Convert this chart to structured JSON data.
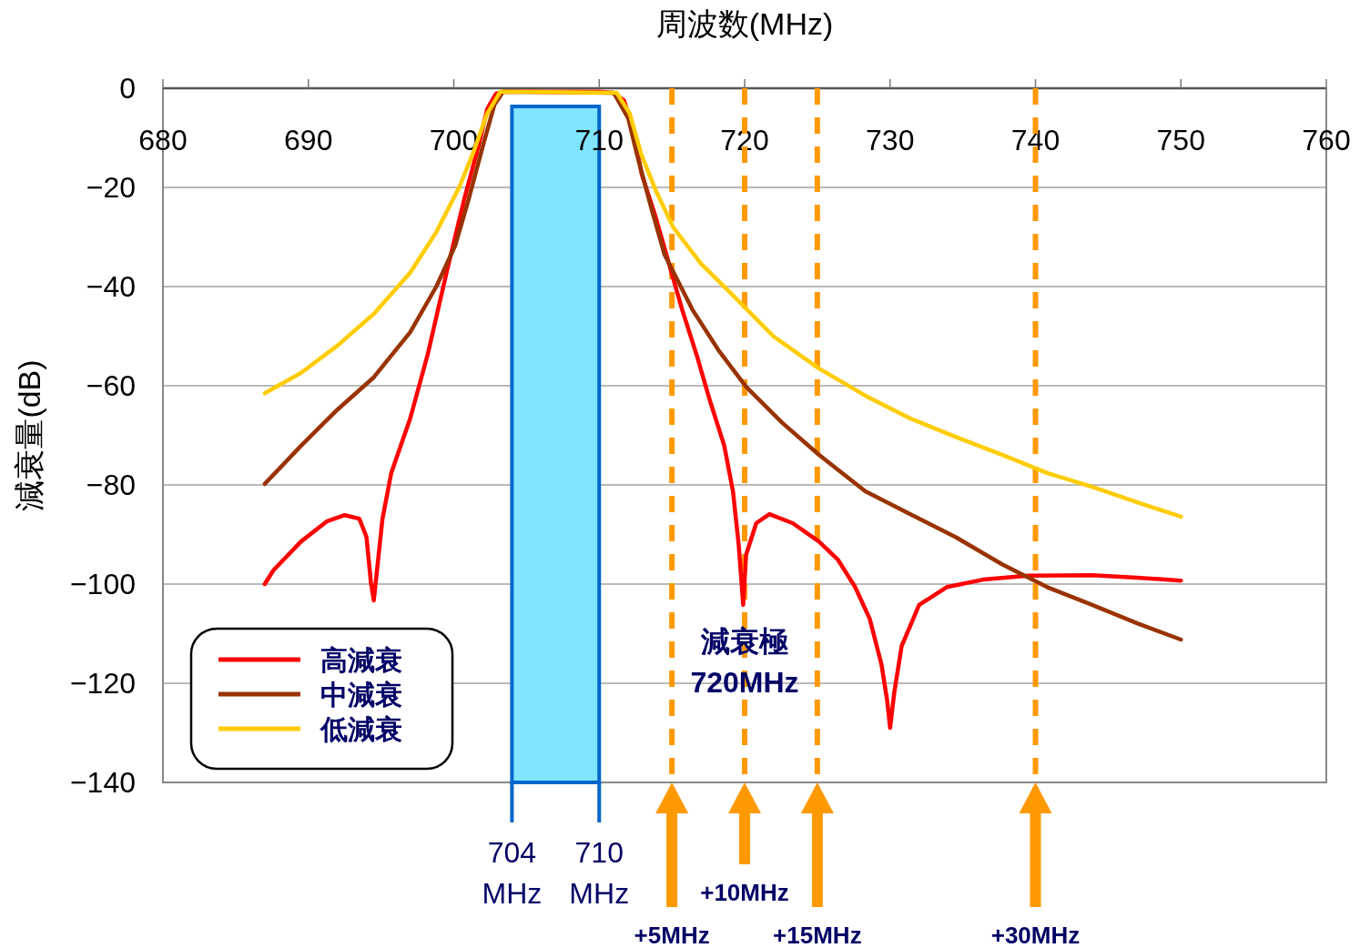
{
  "chart_data": {
    "type": "line",
    "xlabel": "周波数(MHz)",
    "ylabel": "減衰量(dB)",
    "xlim": [
      680,
      760
    ],
    "xticks": [
      680,
      690,
      700,
      710,
      720,
      730,
      740,
      750,
      760
    ],
    "ylim": [
      -140,
      0
    ],
    "yticks": [
      0,
      -20,
      -40,
      -60,
      -80,
      -100,
      -120,
      -140
    ],
    "grid": "y",
    "legend": "bottom left",
    "line_style": "solid",
    "series": [
      {
        "name": "高減衰",
        "color": "#ff0000",
        "x": [
          687,
          687.6,
          689.5,
          691.3,
          692.5,
          693.5,
          694.0,
          694.3,
          694.5,
          694.7,
          695.1,
          695.7,
          697.0,
          698.2,
          699.5,
          700.7,
          701.7,
          702.3,
          702.9,
          703.5,
          710.0,
          710.9,
          711.7,
          712.3,
          712.9,
          713.9,
          714.8,
          715.7,
          716.7,
          717.6,
          718.6,
          719.2,
          719.6,
          719.9,
          720.1,
          720.8,
          721.7,
          723.3,
          725.1,
          726.4,
          727.6,
          728.6,
          729.4,
          729.8,
          730.0,
          730.3,
          730.8,
          732.0,
          733.9,
          736.4,
          739.5,
          743.9,
          747.0,
          750
        ],
        "values": [
          -100.0,
          -97.2,
          -91.4,
          -87.3,
          -86.1,
          -86.8,
          -90.5,
          -99.6,
          -103.3,
          -97.8,
          -86.8,
          -77.6,
          -66.6,
          -53.8,
          -37.2,
          -22.6,
          -11.6,
          -4.2,
          -1.1,
          -0.7,
          -0.7,
          -0.9,
          -2.4,
          -7.9,
          -17.1,
          -26.2,
          -35.4,
          -44.6,
          -53.8,
          -62.9,
          -72.1,
          -81.3,
          -92.3,
          -104.2,
          -94.1,
          -87.7,
          -85.9,
          -87.7,
          -91.4,
          -95.0,
          -100.6,
          -107.0,
          -116.1,
          -123.5,
          -129.0,
          -121.7,
          -112.5,
          -104.2,
          -100.6,
          -99.1,
          -98.3,
          -98.2,
          -98.7,
          -99.3
        ]
      },
      {
        "name": "中減衰",
        "color": "#993300",
        "x": [
          687,
          689.5,
          692.0,
          694.5,
          697.0,
          698.8,
          700.1,
          701.0,
          702.0,
          702.8,
          703.4,
          711.0,
          712.0,
          712.6,
          713.6,
          714.5,
          716.4,
          718.2,
          720.1,
          722.6,
          725.1,
          728.3,
          731.4,
          734.5,
          737.7,
          740.8,
          743.9,
          747.0,
          750
        ],
        "values": [
          -79.8,
          -72.1,
          -64.8,
          -58.3,
          -49.2,
          -40.0,
          -31.7,
          -22.6,
          -11.6,
          -3.3,
          -0.7,
          -0.9,
          -6.1,
          -13.4,
          -24.4,
          -33.6,
          -44.6,
          -52.8,
          -60.2,
          -67.5,
          -73.9,
          -81.3,
          -85.9,
          -90.5,
          -96.0,
          -100.6,
          -104.2,
          -107.9,
          -111.2
        ]
      },
      {
        "name": "低減衰",
        "color": "#ffcc00",
        "x": [
          687,
          689.5,
          692.0,
          694.5,
          697.0,
          698.8,
          700.4,
          701.4,
          702.3,
          703.2,
          711.2,
          712.1,
          712.9,
          713.9,
          715.1,
          717.0,
          718.9,
          722.0,
          725.1,
          728.3,
          731.4,
          734.5,
          737.7,
          740.8,
          743.9,
          747.0,
          750
        ],
        "values": [
          -61.5,
          -57.4,
          -51.9,
          -45.5,
          -37.2,
          -29.0,
          -19.8,
          -12.5,
          -5.1,
          -0.7,
          -0.9,
          -5.1,
          -13.4,
          -20.7,
          -28.1,
          -35.4,
          -40.9,
          -50.1,
          -56.5,
          -62.0,
          -66.6,
          -70.3,
          -73.9,
          -77.6,
          -80.4,
          -83.5,
          -86.4
        ]
      }
    ],
    "bands": [
      {
        "axis": "x",
        "from": 704,
        "to": 710,
        "color": "#80e5ff"
      }
    ],
    "ref_lines": [
      {
        "axis": "x",
        "value": 715,
        "label": "+5MHz",
        "color": "#ff9900",
        "line_style": "dashed"
      },
      {
        "axis": "x",
        "value": 720,
        "label": "+10MHz",
        "color": "#ff9900",
        "line_style": "dashed"
      },
      {
        "axis": "x",
        "value": 725,
        "label": "+15MHz",
        "color": "#ff9900",
        "line_style": "dashed"
      },
      {
        "axis": "x",
        "value": 740,
        "label": "+30MHz",
        "color": "#ff9900",
        "line_style": "dashed"
      }
    ],
    "annotations": [
      "704\nMHz",
      "710\nMHz",
      {
        "text": "減衰極\n720MHz",
        "x": 720,
        "y": -104
      }
    ]
  }
}
